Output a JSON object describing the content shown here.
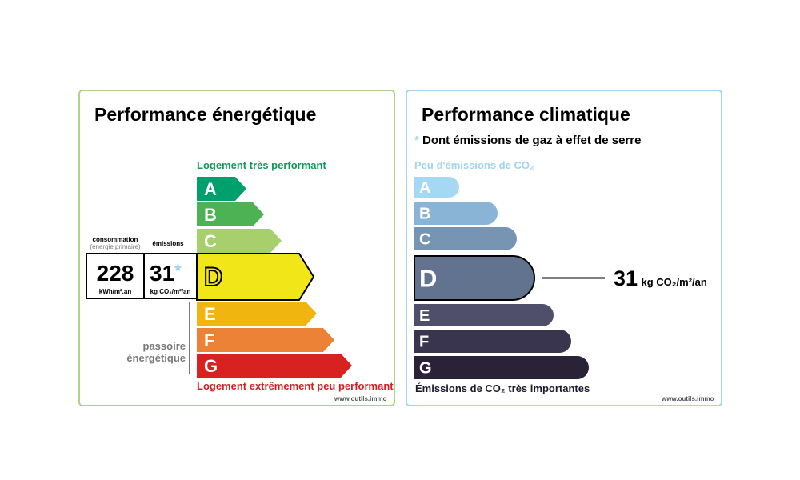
{
  "energy": {
    "title": "Performance énergétique",
    "top_label": "Logement très performant",
    "bottom_label": "Logement extrêmement peu performant",
    "consumption_label": "consommation",
    "consumption_sub": "(énergie primaire)",
    "emissions_label": "émissions",
    "consumption_value": "228",
    "consumption_unit": "kWh/m².an",
    "emissions_value": "31",
    "emissions_star": "*",
    "emissions_unit": "kg CO₂/m²/an",
    "passoire_line1": "passoire",
    "passoire_line2": "énergétique",
    "credit": "www.outils.immo",
    "selected": "D"
  },
  "climate": {
    "title": "Performance climatique",
    "note_star": "*",
    "note": "Dont émissions de gaz à effet de serre",
    "top_label": "Peu d'émissions de CO₂",
    "bottom_label": "Émissions de CO₂ très importantes",
    "result_value": "31",
    "result_unit": "kg CO₂/m²/an",
    "credit": "www.outils.immo",
    "selected": "D"
  },
  "chart_data": [
    {
      "type": "bar",
      "title": "Performance énergétique",
      "categories": [
        "A",
        "B",
        "C",
        "D",
        "E",
        "F",
        "G"
      ],
      "colors": [
        "#00a06c",
        "#4cb253",
        "#a7cf6c",
        "#f1e617",
        "#f0b50f",
        "#ec8236",
        "#d7221f"
      ],
      "selected": "D",
      "consumption_kwh_m2_an": 228,
      "emissions_kg_co2_m2_an": 31
    },
    {
      "type": "bar",
      "title": "Performance climatique",
      "categories": [
        "A",
        "B",
        "C",
        "D",
        "E",
        "F",
        "G"
      ],
      "colors": [
        "#a4d8f3",
        "#8ab4d6",
        "#7894b3",
        "#627390",
        "#4f4e6b",
        "#3a354f",
        "#2a2237"
      ],
      "selected": "D",
      "emissions_kg_co2_m2_an": 31
    }
  ]
}
